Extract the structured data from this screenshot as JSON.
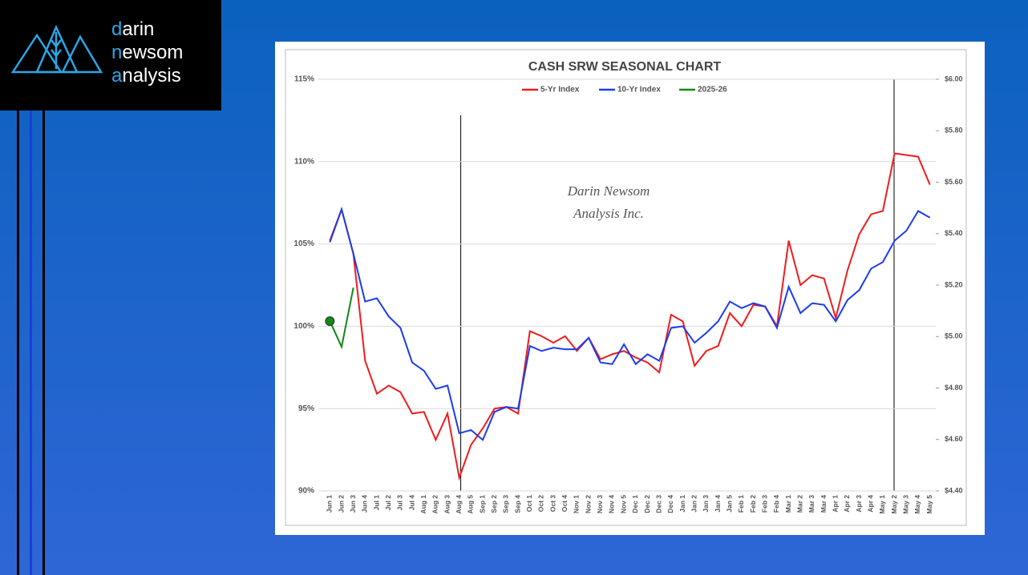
{
  "logo": {
    "lines": [
      "darin",
      "newsom",
      "analysis"
    ]
  },
  "chart_data": {
    "type": "line",
    "title": "CASH SRW SEASONAL CHART",
    "annotations": [
      "Darin Newsom",
      "Analysis Inc."
    ],
    "categories": [
      "Jun 1",
      "Jun 2",
      "Jun 3",
      "Jun 4",
      "Jul 1",
      "Jul 2",
      "Jul 3",
      "Jul 4",
      "Aug 1",
      "Aug 2",
      "Aug 3",
      "Aug 4",
      "Aug 5",
      "Sep 1",
      "Sep 2",
      "Sep 3",
      "Sep 4",
      "Oct 1",
      "Oct 2",
      "Oct 3",
      "Oct 4",
      "Nov 1",
      "Nov 2",
      "Nov 3",
      "Nov 4",
      "Nov 5",
      "Dec 1",
      "Dec 2",
      "Dec 3",
      "Dec 4",
      "Jan 1",
      "Jan 2",
      "Jan 3",
      "Jan 4",
      "Jan 5",
      "Feb 1",
      "Feb 2",
      "Feb 3",
      "Feb 4",
      "Mar 1",
      "Mar 2",
      "Mar 3",
      "Mar 4",
      "Apr 1",
      "Apr 2",
      "Apr 3",
      "Apr 4",
      "May 1",
      "May 2",
      "May 3",
      "May 4",
      "May 5"
    ],
    "series": [
      {
        "name": "5-Yr Index",
        "color": "#ee1c1c",
        "values": [
          105.2,
          107.1,
          104.4,
          97.9,
          95.9,
          96.4,
          96.0,
          94.7,
          94.8,
          93.1,
          94.7,
          90.8,
          92.8,
          93.8,
          95.0,
          95.1,
          94.7,
          99.7,
          99.4,
          99.0,
          99.4,
          98.5,
          99.3,
          98.0,
          98.3,
          98.5,
          98.1,
          97.8,
          97.2,
          100.7,
          100.3,
          97.6,
          98.5,
          98.8,
          100.8,
          100.0,
          101.3,
          101.2,
          100.0,
          105.2,
          102.5,
          103.1,
          102.9,
          100.5,
          103.4,
          105.6,
          106.8,
          107.0,
          110.5,
          110.4,
          110.3,
          108.6
        ]
      },
      {
        "name": "10-Yr Index",
        "color": "#1c3cf0",
        "values": [
          105.1,
          107.1,
          104.4,
          101.5,
          101.7,
          100.6,
          99.9,
          97.8,
          97.3,
          96.2,
          96.4,
          93.5,
          93.7,
          93.1,
          94.8,
          95.1,
          95.0,
          98.8,
          98.5,
          98.7,
          98.6,
          98.6,
          99.3,
          97.8,
          97.7,
          98.9,
          97.7,
          98.3,
          97.9,
          99.9,
          100.0,
          99.0,
          99.6,
          100.3,
          101.5,
          101.1,
          101.4,
          101.2,
          99.9,
          102.4,
          100.8,
          101.4,
          101.3,
          100.3,
          101.6,
          102.2,
          103.5,
          103.9,
          105.2,
          105.8,
          107.0,
          106.6
        ]
      },
      {
        "name": "2025-26",
        "color": "#0e8a16",
        "axis": "y2",
        "values": [
          5.06,
          4.96,
          5.19,
          null,
          null,
          null,
          null,
          null,
          null,
          null,
          null,
          null,
          null,
          null,
          null,
          null,
          null,
          null,
          null,
          null,
          null,
          null,
          null,
          null,
          null,
          null,
          null,
          null,
          null,
          null,
          null,
          null,
          null,
          null,
          null,
          null,
          null,
          null,
          null,
          null,
          null,
          null,
          null,
          null,
          null,
          null,
          null,
          null,
          null,
          null,
          null,
          null
        ]
      }
    ],
    "ylim": [
      90,
      115
    ],
    "yticks": [
      {
        "value": 90,
        "label": "90%"
      },
      {
        "value": 95,
        "label": "95%"
      },
      {
        "value": 100,
        "label": "100%"
      },
      {
        "value": 105,
        "label": "105%"
      },
      {
        "value": 110,
        "label": "110%"
      },
      {
        "value": 115,
        "label": "115%"
      }
    ],
    "y2lim": [
      4.4,
      6.0
    ],
    "y2ticks": [
      {
        "value": 4.4,
        "label": "$4.40"
      },
      {
        "value": 4.6,
        "label": "$4.60"
      },
      {
        "value": 4.8,
        "label": "$4.80"
      },
      {
        "value": 5.0,
        "label": "$5.00"
      },
      {
        "value": 5.2,
        "label": "$5.20"
      },
      {
        "value": 5.4,
        "label": "$5.40"
      },
      {
        "value": 5.6,
        "label": "$5.60"
      },
      {
        "value": 5.8,
        "label": "$5.80"
      },
      {
        "value": 6.0,
        "label": "$6.00"
      }
    ],
    "grid": true,
    "legend": "top"
  }
}
